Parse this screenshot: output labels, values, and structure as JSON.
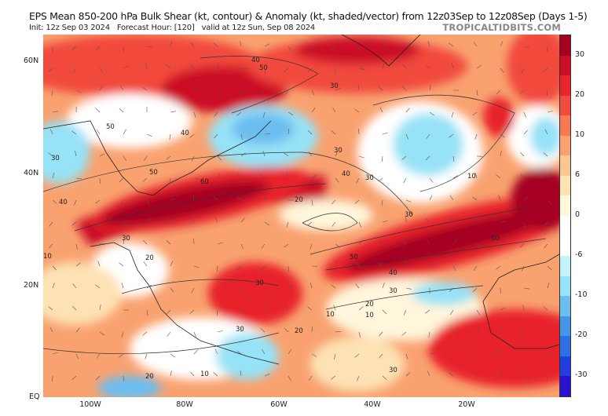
{
  "header": {
    "title": "EPS Mean 850-200 hPa Bulk Shear (kt, contour) & Anomaly (kt, shaded/vector) from 12z03Sep to 12z08Sep (Days 1-5)",
    "init": "Init: 12z Sep 03 2024",
    "forecast_hour": "Forecast Hour: [120]",
    "valid": "valid at 12z Sun, Sep 08 2024",
    "brand": "TROPICALTIDBITS.COM"
  },
  "axes": {
    "lat_labels": [
      "60N",
      "40N",
      "20N",
      "EQ"
    ],
    "lon_labels": [
      "100W",
      "80W",
      "60W",
      "40W",
      "20W"
    ]
  },
  "colorbar": {
    "labels": [
      "30",
      "20",
      "10",
      "6",
      "0",
      "-6",
      "-10",
      "-20",
      "-30"
    ],
    "colors": [
      "#a50020",
      "#cc0d26",
      "#e8242c",
      "#f24a3c",
      "#f77a55",
      "#f9a270",
      "#fbc690",
      "#fde2b4",
      "#fff6dc",
      "#ffffff",
      "#ffffff",
      "#c3f3fb",
      "#96e2f6",
      "#6cbdf0",
      "#4596e9",
      "#2f6fe4",
      "#1f3fe0",
      "#2a10d0"
    ]
  },
  "contour_labels": [
    "40",
    "50",
    "30",
    "40",
    "50",
    "30",
    "50",
    "60",
    "40",
    "30",
    "40",
    "10",
    "30",
    "20",
    "30",
    "30",
    "50",
    "60",
    "10",
    "40",
    "30",
    "20",
    "10",
    "20",
    "30",
    "10",
    "20",
    "30",
    "20",
    "10",
    "30"
  ]
}
